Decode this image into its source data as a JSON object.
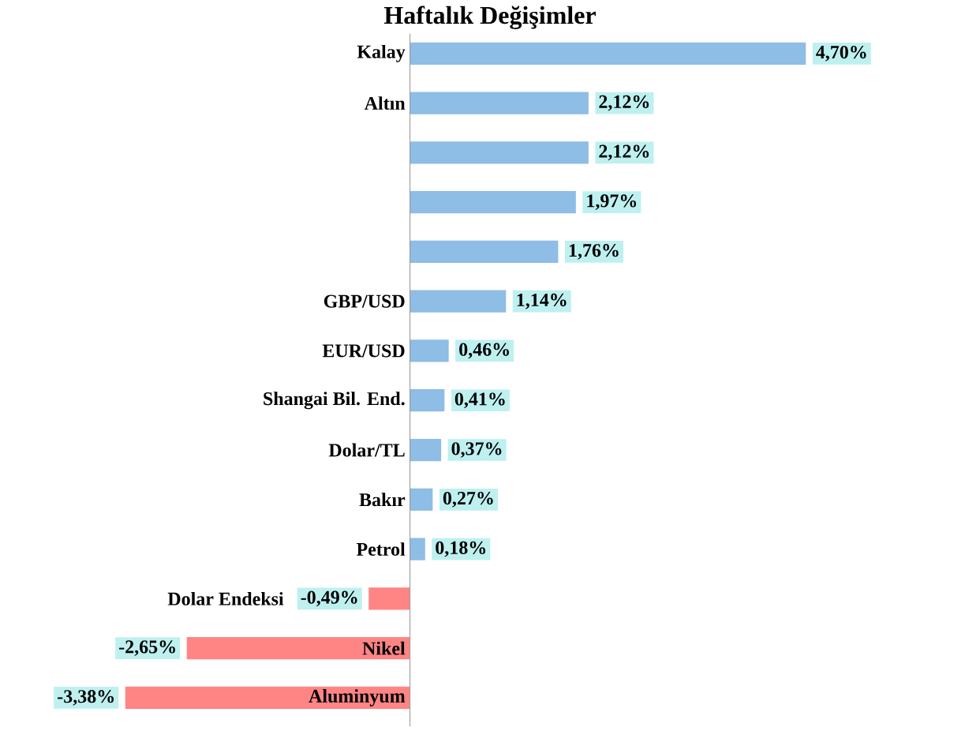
{
  "chart_data": {
    "type": "bar",
    "orientation": "horizontal",
    "title": "Haftalık Değişimler",
    "categories": [
      "Kalay",
      "Altın",
      null,
      null,
      null,
      "GBP/USD",
      "EUR/USD",
      "Shangai Bil. End.",
      "Dolar/TL",
      "Bakır",
      "Petrol",
      "Dolar Endeksi",
      "Nikel",
      "Aluminyum"
    ],
    "values": [
      4.7,
      2.12,
      2.12,
      1.97,
      1.76,
      1.14,
      0.46,
      0.41,
      0.37,
      0.27,
      0.18,
      -0.49,
      -2.65,
      -3.38
    ],
    "colors": [
      "#8ebde6",
      "#8ebde6",
      "#8ebde6",
      "#8ebde6",
      "#8ebde6",
      "#8ebde6",
      "#8ebde6",
      "#8ebde6",
      "#8ebde6",
      "#8ebde6",
      "#8ebde6",
      "#ff8585",
      "#ff8585",
      "#ff8585"
    ],
    "value_labels": [
      "4,70%",
      "2,12%",
      "2,12%",
      "1,97%",
      "1,76%",
      "1,14%",
      "0,46%",
      "0,41%",
      "0,37%",
      "0,27%",
      "0,18%",
      "-0,49%",
      "-2,65%",
      "-3,38%"
    ]
  }
}
